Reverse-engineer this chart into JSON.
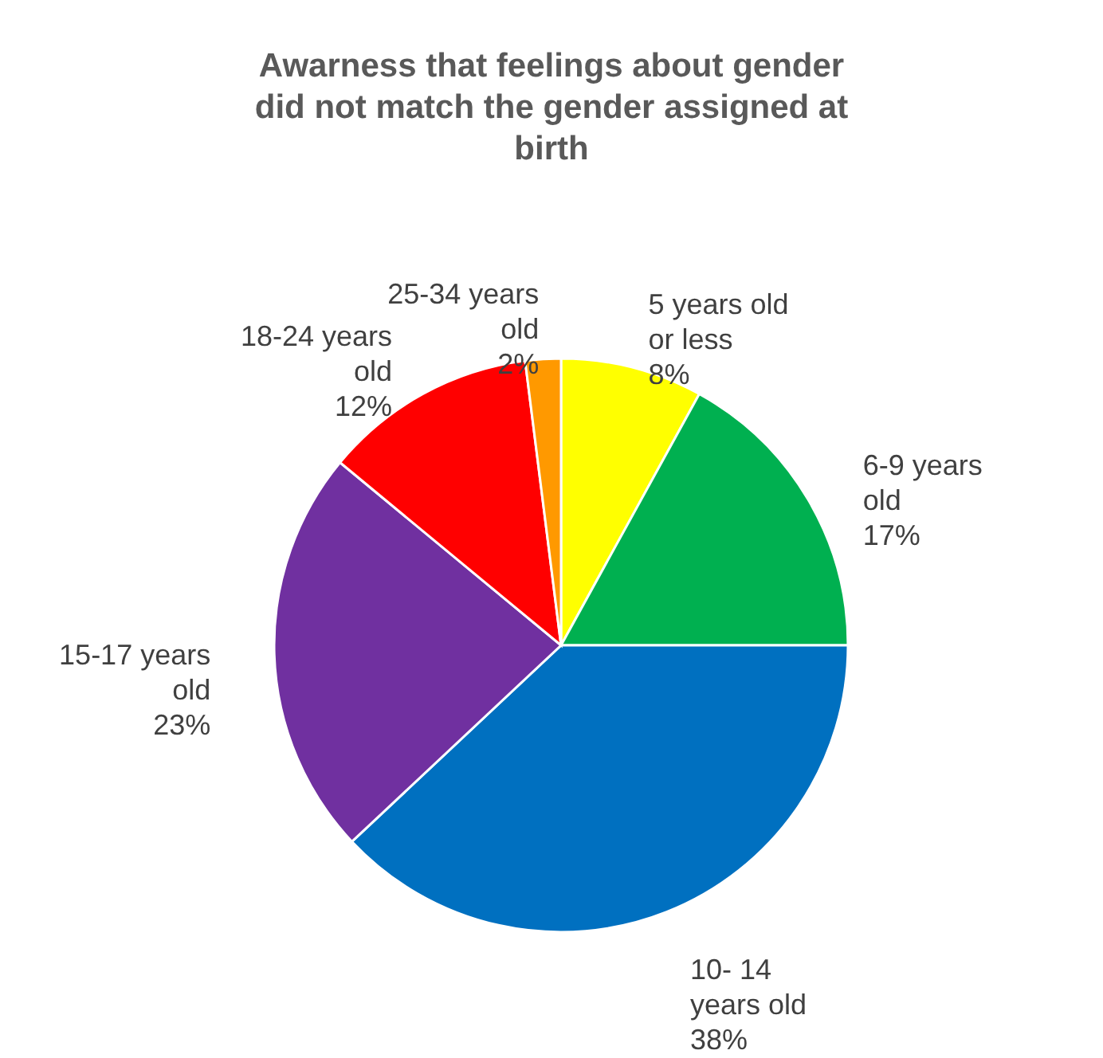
{
  "chart_data": {
    "type": "pie",
    "title": "Awarness that feelings about gender did not match the gender assigned at birth",
    "categories": [
      "5 years old or less",
      "6-9 years old",
      "10- 14 years old",
      "15-17 years old",
      "18-24 years old",
      "25-34 years old"
    ],
    "values": [
      8,
      17,
      38,
      23,
      12,
      2
    ],
    "value_labels": [
      "8%",
      "17%",
      "38%",
      "23%",
      "12%",
      "2%"
    ],
    "colors": [
      "#ffff00",
      "#00b050",
      "#0070c0",
      "#7030a0",
      "#ff0000",
      "#ff9900"
    ]
  }
}
